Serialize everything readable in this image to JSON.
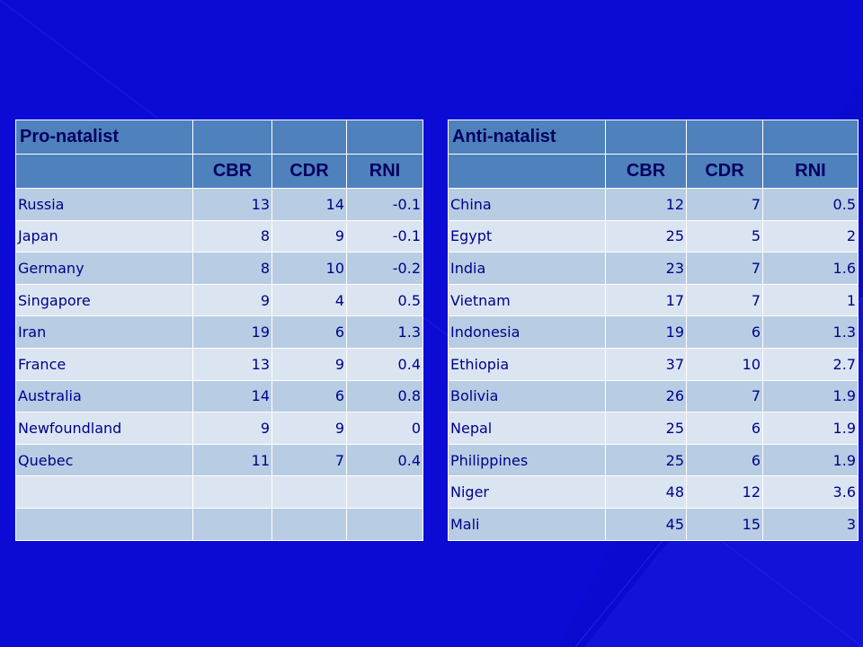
{
  "slide": {
    "pro": {
      "title": "Pro-natalist",
      "headers": [
        "CBR",
        "CDR",
        "RNI"
      ],
      "rows": [
        {
          "country": "Russia",
          "cbr": "13",
          "cdr": "14",
          "rni": "-0.1"
        },
        {
          "country": "Japan",
          "cbr": "8",
          "cdr": "9",
          "rni": "-0.1"
        },
        {
          "country": "Germany",
          "cbr": "8",
          "cdr": "10",
          "rni": "-0.2"
        },
        {
          "country": "Singapore",
          "cbr": "9",
          "cdr": "4",
          "rni": "0.5"
        },
        {
          "country": "Iran",
          "cbr": "19",
          "cdr": "6",
          "rni": "1.3"
        },
        {
          "country": "France",
          "cbr": "13",
          "cdr": "9",
          "rni": "0.4"
        },
        {
          "country": "Australia",
          "cbr": "14",
          "cdr": "6",
          "rni": "0.8"
        },
        {
          "country": "Newfoundland",
          "cbr": "9",
          "cdr": "9",
          "rni": "0"
        },
        {
          "country": "Quebec",
          "cbr": "11",
          "cdr": "7",
          "rni": "0.4"
        },
        {
          "country": "",
          "cbr": "",
          "cdr": "",
          "rni": ""
        },
        {
          "country": "",
          "cbr": "",
          "cdr": "",
          "rni": ""
        }
      ]
    },
    "anti": {
      "title": "Anti-natalist",
      "headers": [
        "CBR",
        "CDR",
        "RNI"
      ],
      "rows": [
        {
          "country": "China",
          "cbr": "12",
          "cdr": "7",
          "rni": "0.5"
        },
        {
          "country": "Egypt",
          "cbr": "25",
          "cdr": "5",
          "rni": "2"
        },
        {
          "country": "India",
          "cbr": "23",
          "cdr": "7",
          "rni": "1.6"
        },
        {
          "country": "Vietnam",
          "cbr": "17",
          "cdr": "7",
          "rni": "1"
        },
        {
          "country": "Indonesia",
          "cbr": "19",
          "cdr": "6",
          "rni": "1.3"
        },
        {
          "country": "Ethiopia",
          "cbr": "37",
          "cdr": "10",
          "rni": "2.7"
        },
        {
          "country": "Bolivia",
          "cbr": "26",
          "cdr": "7",
          "rni": "1.9"
        },
        {
          "country": "Nepal",
          "cbr": "25",
          "cdr": "6",
          "rni": "1.9"
        },
        {
          "country": "Philippines",
          "cbr": "25",
          "cdr": "6",
          "rni": "1.9"
        },
        {
          "country": "Niger",
          "cbr": "48",
          "cdr": "12",
          "rni": "3.6"
        },
        {
          "country": "Mali",
          "cbr": "45",
          "cdr": "15",
          "rni": "3"
        }
      ]
    }
  },
  "colors": {
    "background": "#0a0ad0",
    "header_fill": "#4f81bd",
    "row_odd": "#b8cce4",
    "row_even": "#dbe5f1",
    "text": "#00008a"
  }
}
